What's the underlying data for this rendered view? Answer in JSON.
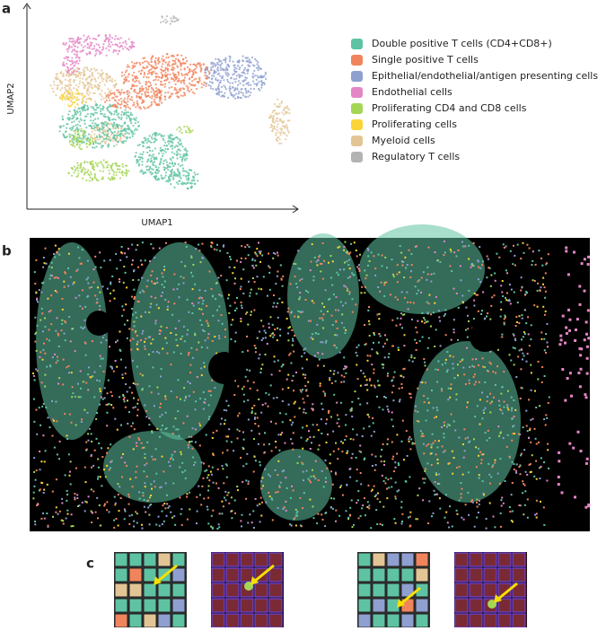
{
  "panels": {
    "a": {
      "label": "a",
      "x_axis_label": "UMAP1",
      "y_axis_label": "UMAP2",
      "legend": [
        {
          "name": "Double positive T cells (CD4+CD8+)",
          "color": "#5fc3a3"
        },
        {
          "name": "Single positive T cells",
          "color": "#f0845c"
        },
        {
          "name": "Epithelial/endothelial/antigen presenting cells",
          "color": "#8e9fd0"
        },
        {
          "name": "Endothelial cells",
          "color": "#e486c6"
        },
        {
          "name": "Proliferating CD4 and CD8 cells",
          "color": "#a5d554"
        },
        {
          "name": "Proliferating cells",
          "color": "#fad535"
        },
        {
          "name": "Myeloid cells",
          "color": "#e3c595"
        },
        {
          "name": "Regulatory T cells",
          "color": "#b3b3b3"
        }
      ]
    },
    "b": {
      "label": "b"
    },
    "c": {
      "label": "c"
    }
  }
}
